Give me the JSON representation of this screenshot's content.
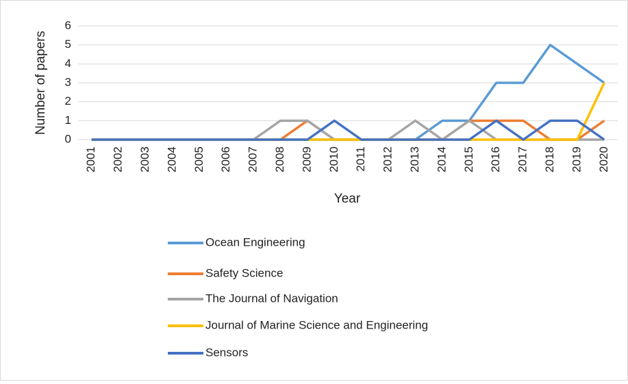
{
  "chart_data": {
    "type": "line",
    "x_label": "Year",
    "y_label": "Number of papers",
    "categories": [
      "2001",
      "2002",
      "2003",
      "2004",
      "2005",
      "2006",
      "2007",
      "2008",
      "2009",
      "2010",
      "2011",
      "2012",
      "2013",
      "2014",
      "2015",
      "2016",
      "2017",
      "2018",
      "2019",
      "2020"
    ],
    "series": [
      {
        "name": "Ocean Engineering",
        "color": "#5b9bd5",
        "values": [
          0,
          0,
          0,
          0,
          0,
          0,
          0,
          0,
          0,
          0,
          0,
          0,
          0,
          1,
          1,
          3,
          3,
          5,
          4,
          3
        ]
      },
      {
        "name": "Safety Science",
        "color": "#ed7d31",
        "values": [
          0,
          0,
          0,
          0,
          0,
          0,
          0,
          0,
          1,
          0,
          0,
          0,
          0,
          0,
          1,
          1,
          1,
          0,
          0,
          1
        ]
      },
      {
        "name": "The Journal of Navigation",
        "color": "#a5a5a5",
        "values": [
          0,
          0,
          0,
          0,
          0,
          0,
          0,
          1,
          1,
          0,
          0,
          0,
          1,
          0,
          1,
          0,
          0,
          0,
          0,
          0
        ]
      },
      {
        "name": "Journal of Marine Science and Engineering",
        "color": "#ffc000",
        "values": [
          0,
          0,
          0,
          0,
          0,
          0,
          0,
          0,
          0,
          0,
          0,
          0,
          0,
          0,
          0,
          0,
          0,
          0,
          0,
          3
        ]
      },
      {
        "name": "Sensors",
        "color": "#4472c4",
        "values": [
          0,
          0,
          0,
          0,
          0,
          0,
          0,
          0,
          0,
          1,
          0,
          0,
          0,
          0,
          0,
          1,
          0,
          1,
          1,
          0
        ]
      }
    ],
    "ylim": [
      0,
      6
    ],
    "yticks": [
      0,
      1,
      2,
      3,
      4,
      5,
      6
    ],
    "grid": true,
    "legend": "bottom"
  }
}
